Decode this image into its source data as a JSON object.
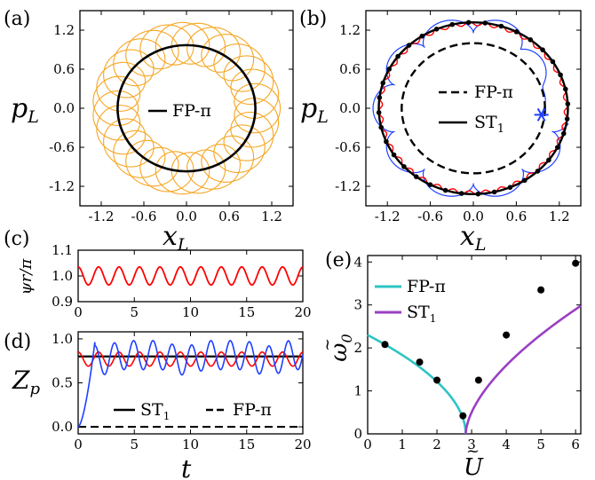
{
  "chart_data": [
    {
      "id": "a",
      "panel_label": "(a)",
      "type": "line",
      "xlabel": "x",
      "xlabel_sub": "L",
      "ylabel": "p",
      "ylabel_sub": "L",
      "xlim": [
        -1.5,
        1.5
      ],
      "ylim": [
        -1.5,
        1.5
      ],
      "xticks": [
        "-1.2",
        "-0.6",
        "0.0",
        "0.6",
        "1.2"
      ],
      "yticks": [
        "1.2",
        "0.6",
        "0.0",
        "-0.6",
        "-1.2"
      ],
      "legend": [
        "FP-π"
      ],
      "series": [
        {
          "name": "FP-π",
          "shape": "circle",
          "radius": 0.97,
          "color": "#000000"
        },
        {
          "shape": "epicycle",
          "R": 1.0,
          "r": 0.32,
          "loops": 28,
          "color": "#f5a623"
        }
      ]
    },
    {
      "id": "b",
      "panel_label": "(b)",
      "type": "line",
      "xlabel": "x",
      "xlabel_sub": "L",
      "ylabel": "p",
      "ylabel_sub": "L",
      "xlim": [
        -1.5,
        1.5
      ],
      "ylim": [
        -1.5,
        1.5
      ],
      "xticks": [
        "-1.2",
        "-0.6",
        "0.0",
        "0.6",
        "1.2"
      ],
      "yticks": [
        "1.2",
        "0.6",
        "0.0",
        "-0.6",
        "-1.2"
      ],
      "legend": [
        "FP-π",
        "ST1"
      ],
      "series": [
        {
          "name": "FP-π",
          "shape": "circle",
          "radius": 1.0,
          "style": "dashed",
          "color": "#000000"
        },
        {
          "name": "ST1",
          "shape": "circle",
          "radius": 1.32,
          "color": "#000000"
        },
        {
          "shape": "wobble",
          "radius": 1.3,
          "color": "#ff0000"
        },
        {
          "shape": "trajectory",
          "start": [
            0.95,
            -0.1
          ],
          "color": "#1f3fff"
        }
      ],
      "markers": {
        "count": 36,
        "radius": 1.32
      },
      "start_marker": [
        0.95,
        -0.1
      ]
    },
    {
      "id": "c",
      "panel_label": "(c)",
      "type": "line",
      "xlabel": "",
      "ylabel": "ψr/π",
      "xlim": [
        0,
        20
      ],
      "ylim": [
        0.9,
        1.1
      ],
      "xticks": [
        "0",
        "5",
        "10",
        "15",
        "20"
      ],
      "yticks": [
        "1.1",
        "1.0",
        "0.9"
      ],
      "series": [
        {
          "shape": "sine",
          "mean": 1.0,
          "amp": 0.035,
          "period": 1.82,
          "color": "#ff0000"
        }
      ]
    },
    {
      "id": "d",
      "panel_label": "(d)",
      "type": "line",
      "xlabel": "t",
      "ylabel": "Z",
      "ylabel_sub": "p",
      "xlim": [
        0,
        20
      ],
      "ylim": [
        -0.08,
        1.08
      ],
      "xticks": [
        "0",
        "5",
        "10",
        "15",
        "20"
      ],
      "yticks": [
        "1.0",
        "0.5",
        "0.0"
      ],
      "legend": [
        "ST1",
        "FP-π"
      ],
      "series": [
        {
          "name": "ST1",
          "shape": "hline",
          "value": 0.8,
          "color": "#000000"
        },
        {
          "name": "FP-π",
          "shape": "hline",
          "value": 0.0,
          "style": "dashed",
          "color": "#000000"
        },
        {
          "shape": "sine",
          "mean": 0.77,
          "amp": 0.08,
          "period": 1.82,
          "color": "#ff0000"
        },
        {
          "shape": "ramp-oscillation",
          "color": "#1f3fff"
        }
      ]
    },
    {
      "id": "e",
      "panel_label": "(e)",
      "type": "line",
      "xlabel": "U",
      "ylabel": "ω",
      "ylabel_sub": "0",
      "xlim": [
        0,
        6.15
      ],
      "ylim": [
        0,
        4.15
      ],
      "xticks": [
        "0",
        "1",
        "2",
        "3",
        "4",
        "5",
        "6"
      ],
      "yticks": [
        "0",
        "1",
        "2",
        "3",
        "4"
      ],
      "legend": [
        "FP-π",
        "ST1"
      ],
      "series": [
        {
          "name": "FP-π",
          "color": "#2ec4c4",
          "curve": "fp",
          "x_end": 2.83
        },
        {
          "name": "ST1",
          "color": "#9a3fc4",
          "curve": "st",
          "x_start": 2.83
        }
      ],
      "points": [
        {
          "x": 0.5,
          "y": 2.08
        },
        {
          "x": 1.5,
          "y": 1.67
        },
        {
          "x": 2.0,
          "y": 1.25
        },
        {
          "x": 2.75,
          "y": 0.42
        },
        {
          "x": 3.2,
          "y": 1.25
        },
        {
          "x": 4.0,
          "y": 2.3
        },
        {
          "x": 5.0,
          "y": 3.35
        },
        {
          "x": 6.0,
          "y": 3.97
        }
      ]
    }
  ]
}
